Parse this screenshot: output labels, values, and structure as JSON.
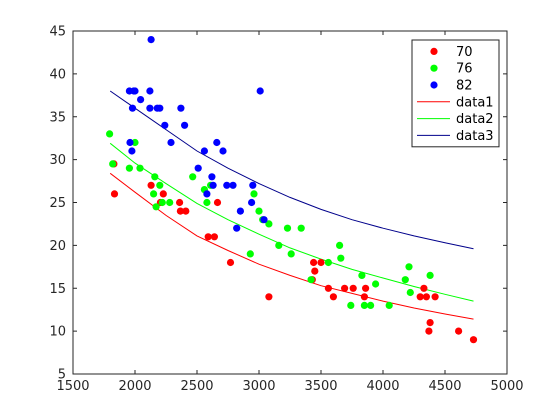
{
  "chart_data": {
    "type": "scatter",
    "xlim": [
      1500,
      5000
    ],
    "ylim": [
      5,
      45
    ],
    "x_ticks": [
      1500,
      2000,
      2500,
      3000,
      3500,
      4000,
      4500,
      5000
    ],
    "y_ticks": [
      5,
      10,
      15,
      20,
      25,
      30,
      35,
      40,
      45
    ],
    "grid": false,
    "legend_position": "top-right",
    "series": [
      {
        "name": "70",
        "color": "#ff0000",
        "marker": "circle",
        "points": [
          [
            1835,
            26
          ],
          [
            1830,
            29.5
          ],
          [
            2130,
            27
          ],
          [
            2205,
            25
          ],
          [
            2228,
            26
          ],
          [
            2360,
            25
          ],
          [
            2366,
            24
          ],
          [
            2410,
            24
          ],
          [
            2590,
            21
          ],
          [
            2640,
            21
          ],
          [
            2665,
            25
          ],
          [
            2770,
            18
          ],
          [
            3080,
            14
          ],
          [
            3430,
            16
          ],
          [
            3440,
            18
          ],
          [
            3450,
            17
          ],
          [
            3500,
            18
          ],
          [
            3560,
            15
          ],
          [
            3600,
            14
          ],
          [
            3690,
            15
          ],
          [
            3760,
            15
          ],
          [
            3850,
            14
          ],
          [
            3860,
            15
          ],
          [
            4300,
            14
          ],
          [
            4330,
            15
          ],
          [
            4350,
            14
          ],
          [
            4370,
            10
          ],
          [
            4380,
            11
          ],
          [
            4420,
            14
          ],
          [
            4610,
            10
          ],
          [
            4730,
            9
          ]
        ]
      },
      {
        "name": "76",
        "color": "#00ff00",
        "marker": "circle",
        "points": [
          [
            1795,
            33
          ],
          [
            1820,
            29.5
          ],
          [
            1955,
            29
          ],
          [
            2000,
            32
          ],
          [
            2040,
            29
          ],
          [
            2150,
            26
          ],
          [
            2160,
            28
          ],
          [
            2170,
            24.5
          ],
          [
            2200,
            27
          ],
          [
            2220,
            25
          ],
          [
            2280,
            25
          ],
          [
            2465,
            28
          ],
          [
            2560,
            26.5
          ],
          [
            2580,
            25
          ],
          [
            2610,
            27
          ],
          [
            2930,
            19
          ],
          [
            2960,
            26
          ],
          [
            3000,
            24
          ],
          [
            3030,
            23
          ],
          [
            3080,
            22.5
          ],
          [
            3160,
            20
          ],
          [
            3230,
            22
          ],
          [
            3260,
            19
          ],
          [
            3340,
            22
          ],
          [
            3420,
            16
          ],
          [
            3560,
            18
          ],
          [
            3650,
            20
          ],
          [
            3660,
            18.5
          ],
          [
            3740,
            13
          ],
          [
            3830,
            16.5
          ],
          [
            3850,
            13
          ],
          [
            3900,
            13
          ],
          [
            3940,
            15.5
          ],
          [
            4050,
            13
          ],
          [
            4180,
            16
          ],
          [
            4210,
            17.5
          ],
          [
            4220,
            14.5
          ],
          [
            4380,
            16.5
          ]
        ]
      },
      {
        "name": "82",
        "color": "#0000ff",
        "marker": "circle",
        "points": [
          [
            1955,
            38
          ],
          [
            1960,
            32
          ],
          [
            1975,
            31
          ],
          [
            1980,
            36
          ],
          [
            1990,
            38
          ],
          [
            2000,
            38
          ],
          [
            2045,
            37
          ],
          [
            2120,
            36
          ],
          [
            2120,
            38
          ],
          [
            2130,
            44
          ],
          [
            2180,
            36
          ],
          [
            2200,
            36
          ],
          [
            2240,
            34
          ],
          [
            2290,
            32
          ],
          [
            2370,
            36
          ],
          [
            2400,
            34
          ],
          [
            2510,
            29
          ],
          [
            2560,
            31
          ],
          [
            2580,
            26
          ],
          [
            2620,
            28
          ],
          [
            2630,
            27
          ],
          [
            2660,
            32
          ],
          [
            2710,
            31
          ],
          [
            2740,
            27
          ],
          [
            2790,
            27
          ],
          [
            2820,
            22
          ],
          [
            2850,
            24
          ],
          [
            2940,
            25
          ],
          [
            2950,
            27
          ],
          [
            3010,
            38
          ],
          [
            3040,
            23
          ]
        ]
      }
    ],
    "fits": [
      {
        "name": "data1",
        "color": "#ff0000",
        "x": [
          1800,
          2000,
          2250,
          2500,
          2750,
          3000,
          3250,
          3500,
          3750,
          4000,
          4250,
          4500,
          4730
        ],
        "y": [
          28.4,
          26.2,
          23.5,
          21.1,
          19.4,
          17.8,
          16.5,
          15.3,
          14.4,
          13.5,
          12.7,
          12.0,
          11.4
        ]
      },
      {
        "name": "data2",
        "color": "#00ff00",
        "x": [
          1800,
          2000,
          2250,
          2500,
          2750,
          3000,
          3250,
          3500,
          3750,
          4000,
          4250,
          4500,
          4730
        ],
        "y": [
          31.9,
          29.6,
          27.2,
          24.9,
          23.0,
          21.3,
          19.7,
          18.4,
          17.2,
          16.2,
          15.2,
          14.3,
          13.5
        ]
      },
      {
        "name": "data3",
        "color": "#00008b",
        "x": [
          1800,
          2000,
          2250,
          2500,
          2750,
          3000,
          3250,
          3500,
          3750,
          4000,
          4250,
          4500,
          4730
        ],
        "y": [
          38.0,
          36.0,
          33.5,
          31.0,
          29.0,
          27.2,
          25.6,
          24.2,
          23.0,
          22.0,
          21.1,
          20.3,
          19.6
        ]
      }
    ]
  }
}
